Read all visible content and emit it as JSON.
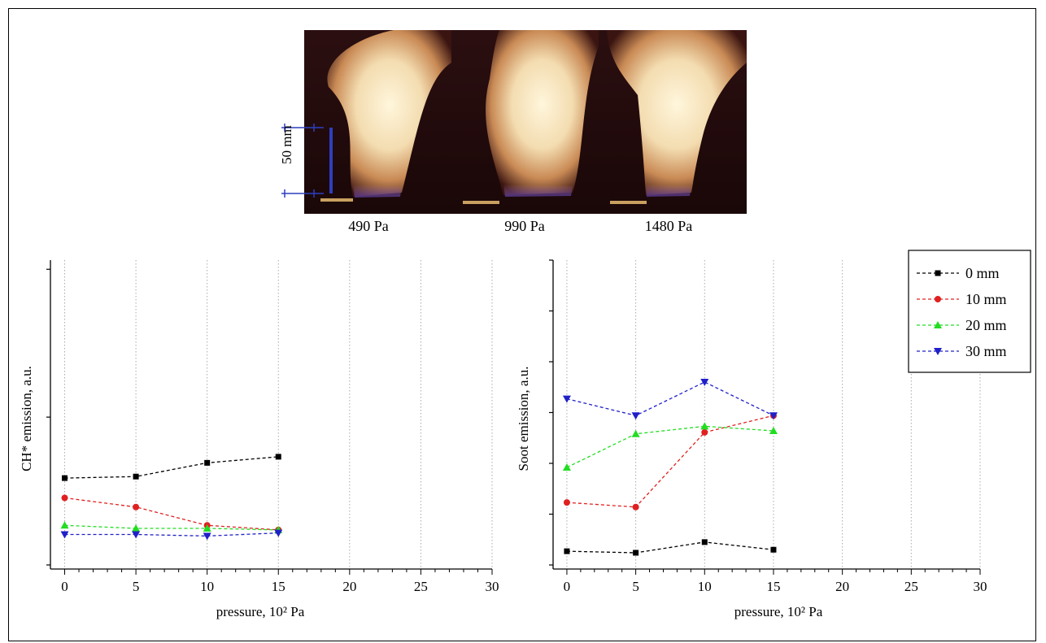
{
  "photos": {
    "captions": [
      "490 Pa",
      "990 Pa",
      "1480 Pa"
    ],
    "scale_label": "50 mm",
    "scale_color": "#2d3fbf"
  },
  "legend": {
    "entries": [
      "0 mm",
      "10 mm",
      "20 mm",
      "30 mm"
    ]
  },
  "series_styles": [
    {
      "color": "#000000",
      "marker": "square"
    },
    {
      "color": "#e02020",
      "marker": "circle"
    },
    {
      "color": "#22dd22",
      "marker": "triangle-up"
    },
    {
      "color": "#2020c8",
      "marker": "triangle-down"
    }
  ],
  "chart_data": [
    {
      "type": "line",
      "xlabel": "pressure, 10² Pa",
      "ylabel": "CH* emission, a.u.",
      "xlim": [
        -1,
        30
      ],
      "ylim": [
        0,
        1
      ],
      "xticks": [
        0,
        5,
        10,
        15,
        20,
        25,
        30
      ],
      "xtick_labels": [
        "0",
        "5",
        "10",
        "15",
        "20",
        "25",
        "30"
      ],
      "vertical_grid": true,
      "x": [
        0,
        5,
        10,
        15
      ],
      "series": [
        {
          "name": "0 mm",
          "values": [
            0.285,
            0.29,
            0.335,
            0.355
          ]
        },
        {
          "name": "10 mm",
          "values": [
            0.22,
            0.19,
            0.13,
            0.115
          ]
        },
        {
          "name": "20 mm",
          "values": [
            0.13,
            0.12,
            0.12,
            0.115
          ]
        },
        {
          "name": "30 mm",
          "values": [
            0.1,
            0.1,
            0.095,
            0.105
          ]
        }
      ]
    },
    {
      "type": "line",
      "xlabel": "pressure, 10² Pa",
      "ylabel": "Soot emission, a.u.",
      "xlim": [
        -1,
        30
      ],
      "ylim": [
        0,
        1
      ],
      "xticks": [
        0,
        5,
        10,
        15,
        20,
        25,
        30
      ],
      "xtick_labels": [
        "0",
        "5",
        "10",
        "15",
        "20",
        "25",
        "30"
      ],
      "vertical_grid": true,
      "legend_position": "top-right",
      "x": [
        0,
        5,
        10,
        15
      ],
      "series": [
        {
          "name": "0 mm",
          "values": [
            0.045,
            0.04,
            0.075,
            0.05
          ]
        },
        {
          "name": "10 mm",
          "values": [
            0.205,
            0.19,
            0.435,
            0.49
          ]
        },
        {
          "name": "20 mm",
          "values": [
            0.32,
            0.43,
            0.455,
            0.44
          ]
        },
        {
          "name": "30 mm",
          "values": [
            0.545,
            0.49,
            0.6,
            0.49
          ]
        }
      ]
    }
  ]
}
